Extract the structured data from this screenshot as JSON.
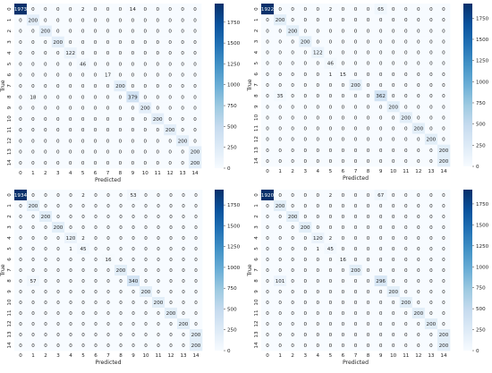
{
  "colors": {
    "low": "#f7fbff",
    "high": "#08306b",
    "text_dark": "#262626",
    "text_light": "#ffffff"
  },
  "chart_data": [
    {
      "type": "heatmap",
      "xlabel": "Predicted",
      "ylabel": "True",
      "x_ticks": [
        "0",
        "1",
        "2",
        "3",
        "4",
        "5",
        "6",
        "7",
        "8",
        "9",
        "10",
        "11",
        "12",
        "13",
        "14"
      ],
      "y_ticks": [
        "0",
        "1",
        "2",
        "3",
        "4",
        "5",
        "6",
        "7",
        "8",
        "9",
        "10",
        "11",
        "12",
        "13",
        "14"
      ],
      "colorbar_ticks": [
        0,
        250,
        500,
        750,
        1000,
        1250,
        1500,
        1750
      ],
      "vmin": 0,
      "vmax": 1973,
      "matrix": [
        [
          1973,
          0,
          0,
          0,
          0,
          2,
          0,
          0,
          0,
          14,
          0,
          0,
          0,
          0,
          0
        ],
        [
          0,
          200,
          0,
          0,
          0,
          0,
          0,
          0,
          0,
          0,
          0,
          0,
          0,
          0,
          0
        ],
        [
          0,
          0,
          200,
          0,
          0,
          0,
          0,
          0,
          0,
          0,
          0,
          0,
          0,
          0,
          0
        ],
        [
          0,
          0,
          0,
          200,
          0,
          0,
          0,
          0,
          0,
          0,
          0,
          0,
          0,
          0,
          0
        ],
        [
          0,
          0,
          0,
          0,
          122,
          0,
          0,
          0,
          0,
          0,
          0,
          0,
          0,
          0,
          0
        ],
        [
          0,
          0,
          0,
          0,
          0,
          46,
          0,
          0,
          0,
          0,
          0,
          0,
          0,
          0,
          0
        ],
        [
          0,
          0,
          0,
          0,
          0,
          0,
          0,
          17,
          0,
          0,
          0,
          0,
          0,
          0,
          0
        ],
        [
          0,
          0,
          0,
          0,
          0,
          0,
          0,
          0,
          200,
          0,
          0,
          0,
          0,
          0,
          0
        ],
        [
          0,
          18,
          0,
          0,
          0,
          0,
          0,
          0,
          0,
          379,
          0,
          0,
          0,
          0,
          0
        ],
        [
          0,
          0,
          0,
          0,
          0,
          0,
          0,
          0,
          0,
          0,
          200,
          0,
          0,
          0,
          0
        ],
        [
          0,
          0,
          0,
          0,
          0,
          0,
          0,
          0,
          0,
          0,
          0,
          200,
          0,
          0,
          0
        ],
        [
          0,
          0,
          0,
          0,
          0,
          0,
          0,
          0,
          0,
          0,
          0,
          0,
          200,
          0,
          0
        ],
        [
          0,
          0,
          0,
          0,
          0,
          0,
          0,
          0,
          0,
          0,
          0,
          0,
          0,
          200,
          0
        ],
        [
          0,
          0,
          0,
          0,
          0,
          0,
          0,
          0,
          0,
          0,
          0,
          0,
          0,
          0,
          200
        ],
        [
          0,
          0,
          0,
          0,
          0,
          0,
          0,
          0,
          0,
          0,
          0,
          0,
          0,
          0,
          200
        ]
      ]
    },
    {
      "type": "heatmap",
      "xlabel": "Predicted",
      "ylabel": "True",
      "x_ticks": [
        "0",
        "1",
        "2",
        "3",
        "4",
        "5",
        "6",
        "7",
        "8",
        "9",
        "10",
        "11",
        "12",
        "13",
        "14"
      ],
      "y_ticks": [
        "0",
        "1",
        "2",
        "3",
        "4",
        "5",
        "6",
        "7",
        "8",
        "9",
        "10",
        "11",
        "12",
        "13",
        "14"
      ],
      "colorbar_ticks": [
        0,
        250,
        500,
        750,
        1000,
        1250,
        1500,
        1750
      ],
      "vmin": 0,
      "vmax": 1922,
      "matrix": [
        [
          1922,
          0,
          0,
          0,
          0,
          2,
          0,
          0,
          0,
          65,
          0,
          0,
          0,
          0,
          0
        ],
        [
          0,
          200,
          0,
          0,
          0,
          0,
          0,
          0,
          0,
          0,
          0,
          0,
          0,
          0,
          0
        ],
        [
          0,
          0,
          200,
          0,
          0,
          0,
          0,
          0,
          0,
          0,
          0,
          0,
          0,
          0,
          0
        ],
        [
          0,
          0,
          0,
          200,
          0,
          0,
          0,
          0,
          0,
          0,
          0,
          0,
          0,
          0,
          0
        ],
        [
          0,
          0,
          0,
          0,
          122,
          0,
          0,
          0,
          0,
          0,
          0,
          0,
          0,
          0,
          0
        ],
        [
          0,
          0,
          0,
          0,
          0,
          46,
          0,
          0,
          0,
          0,
          0,
          0,
          0,
          0,
          0
        ],
        [
          0,
          0,
          0,
          0,
          0,
          1,
          15,
          0,
          0,
          0,
          0,
          0,
          0,
          0,
          0
        ],
        [
          0,
          0,
          0,
          0,
          0,
          0,
          0,
          200,
          0,
          0,
          0,
          0,
          0,
          0,
          0
        ],
        [
          0,
          35,
          0,
          0,
          0,
          0,
          0,
          0,
          0,
          362,
          0,
          0,
          0,
          0,
          0
        ],
        [
          0,
          0,
          0,
          0,
          0,
          0,
          0,
          0,
          0,
          0,
          200,
          0,
          0,
          0,
          0
        ],
        [
          0,
          0,
          0,
          0,
          0,
          0,
          0,
          0,
          0,
          0,
          0,
          200,
          0,
          0,
          0
        ],
        [
          0,
          0,
          0,
          0,
          0,
          0,
          0,
          0,
          0,
          0,
          0,
          0,
          200,
          0,
          0
        ],
        [
          0,
          0,
          0,
          0,
          0,
          0,
          0,
          0,
          0,
          0,
          0,
          0,
          0,
          200,
          0
        ],
        [
          0,
          0,
          0,
          0,
          0,
          0,
          0,
          0,
          0,
          0,
          0,
          0,
          0,
          0,
          200
        ],
        [
          0,
          0,
          0,
          0,
          0,
          0,
          0,
          0,
          0,
          0,
          0,
          0,
          0,
          0,
          200
        ]
      ]
    },
    {
      "type": "heatmap",
      "xlabel": "Predicted",
      "ylabel": "True",
      "x_ticks": [
        "0",
        "1",
        "2",
        "3",
        "4",
        "5",
        "6",
        "7",
        "8",
        "9",
        "10",
        "11",
        "12",
        "13",
        "14"
      ],
      "y_ticks": [
        "0",
        "1",
        "2",
        "3",
        "4",
        "5",
        "6",
        "7",
        "8",
        "9",
        "10",
        "11",
        "12",
        "13",
        "14"
      ],
      "colorbar_ticks": [
        0,
        250,
        500,
        750,
        1000,
        1250,
        1500,
        1750
      ],
      "vmin": 0,
      "vmax": 1934,
      "matrix": [
        [
          1934,
          0,
          0,
          0,
          0,
          2,
          0,
          0,
          0,
          53,
          0,
          0,
          0,
          0,
          0
        ],
        [
          0,
          200,
          0,
          0,
          0,
          0,
          0,
          0,
          0,
          0,
          0,
          0,
          0,
          0,
          0
        ],
        [
          0,
          0,
          200,
          0,
          0,
          0,
          0,
          0,
          0,
          0,
          0,
          0,
          0,
          0,
          0
        ],
        [
          0,
          0,
          0,
          200,
          0,
          0,
          0,
          0,
          0,
          0,
          0,
          0,
          0,
          0,
          0
        ],
        [
          0,
          0,
          0,
          0,
          120,
          2,
          0,
          0,
          0,
          0,
          0,
          0,
          0,
          0,
          0
        ],
        [
          0,
          0,
          0,
          0,
          1,
          45,
          0,
          0,
          0,
          0,
          0,
          0,
          0,
          0,
          0
        ],
        [
          0,
          0,
          0,
          0,
          0,
          0,
          0,
          16,
          0,
          0,
          0,
          0,
          0,
          0,
          0
        ],
        [
          0,
          0,
          0,
          0,
          0,
          0,
          0,
          0,
          200,
          0,
          0,
          0,
          0,
          0,
          0
        ],
        [
          0,
          57,
          0,
          0,
          0,
          0,
          0,
          0,
          0,
          340,
          0,
          0,
          0,
          0,
          0
        ],
        [
          0,
          0,
          0,
          0,
          0,
          0,
          0,
          0,
          0,
          0,
          200,
          0,
          0,
          0,
          0
        ],
        [
          0,
          0,
          0,
          0,
          0,
          0,
          0,
          0,
          0,
          0,
          0,
          200,
          0,
          0,
          0
        ],
        [
          0,
          0,
          0,
          0,
          0,
          0,
          0,
          0,
          0,
          0,
          0,
          0,
          200,
          0,
          0
        ],
        [
          0,
          0,
          0,
          0,
          0,
          0,
          0,
          0,
          0,
          0,
          0,
          0,
          0,
          200,
          0
        ],
        [
          0,
          0,
          0,
          0,
          0,
          0,
          0,
          0,
          0,
          0,
          0,
          0,
          0,
          0,
          200
        ],
        [
          0,
          0,
          0,
          0,
          0,
          0,
          0,
          0,
          0,
          0,
          0,
          0,
          0,
          0,
          200
        ]
      ]
    },
    {
      "type": "heatmap",
      "xlabel": "Predicted",
      "ylabel": "True",
      "x_ticks": [
        "0",
        "1",
        "2",
        "3",
        "4",
        "5",
        "6",
        "7",
        "8",
        "9",
        "10",
        "11",
        "12",
        "13",
        "14"
      ],
      "y_ticks": [
        "0",
        "1",
        "2",
        "3",
        "4",
        "5",
        "6",
        "7",
        "8",
        "9",
        "10",
        "11",
        "12",
        "13",
        "14"
      ],
      "colorbar_ticks": [
        0,
        250,
        500,
        750,
        1000,
        1250,
        1500,
        1750
      ],
      "vmin": 0,
      "vmax": 1920,
      "matrix": [
        [
          1920,
          0,
          0,
          0,
          0,
          2,
          0,
          0,
          0,
          67,
          0,
          0,
          0,
          0,
          0
        ],
        [
          0,
          200,
          0,
          0,
          0,
          0,
          0,
          0,
          0,
          0,
          0,
          0,
          0,
          0,
          0
        ],
        [
          0,
          0,
          200,
          0,
          0,
          0,
          0,
          0,
          0,
          0,
          0,
          0,
          0,
          0,
          0
        ],
        [
          0,
          0,
          0,
          200,
          0,
          0,
          0,
          0,
          0,
          0,
          0,
          0,
          0,
          0,
          0
        ],
        [
          0,
          0,
          0,
          0,
          120,
          2,
          0,
          0,
          0,
          0,
          0,
          0,
          0,
          0,
          0
        ],
        [
          0,
          0,
          0,
          0,
          1,
          45,
          0,
          0,
          0,
          0,
          0,
          0,
          0,
          0,
          0
        ],
        [
          0,
          0,
          0,
          0,
          0,
          0,
          16,
          0,
          0,
          0,
          0,
          0,
          0,
          0,
          0
        ],
        [
          0,
          0,
          0,
          0,
          0,
          0,
          0,
          200,
          0,
          0,
          0,
          0,
          0,
          0,
          0
        ],
        [
          0,
          101,
          0,
          0,
          0,
          0,
          0,
          0,
          0,
          296,
          0,
          0,
          0,
          0,
          0
        ],
        [
          0,
          0,
          0,
          0,
          0,
          0,
          0,
          0,
          0,
          0,
          200,
          0,
          0,
          0,
          0
        ],
        [
          0,
          0,
          0,
          0,
          0,
          0,
          0,
          0,
          0,
          0,
          0,
          200,
          0,
          0,
          0
        ],
        [
          0,
          0,
          0,
          0,
          0,
          0,
          0,
          0,
          0,
          0,
          0,
          0,
          200,
          0,
          0
        ],
        [
          0,
          0,
          0,
          0,
          0,
          0,
          0,
          0,
          0,
          0,
          0,
          0,
          0,
          200,
          0
        ],
        [
          0,
          0,
          0,
          0,
          0,
          0,
          0,
          0,
          0,
          0,
          0,
          0,
          0,
          0,
          200
        ],
        [
          0,
          0,
          0,
          0,
          0,
          0,
          0,
          0,
          0,
          0,
          0,
          0,
          0,
          0,
          200
        ]
      ]
    }
  ]
}
